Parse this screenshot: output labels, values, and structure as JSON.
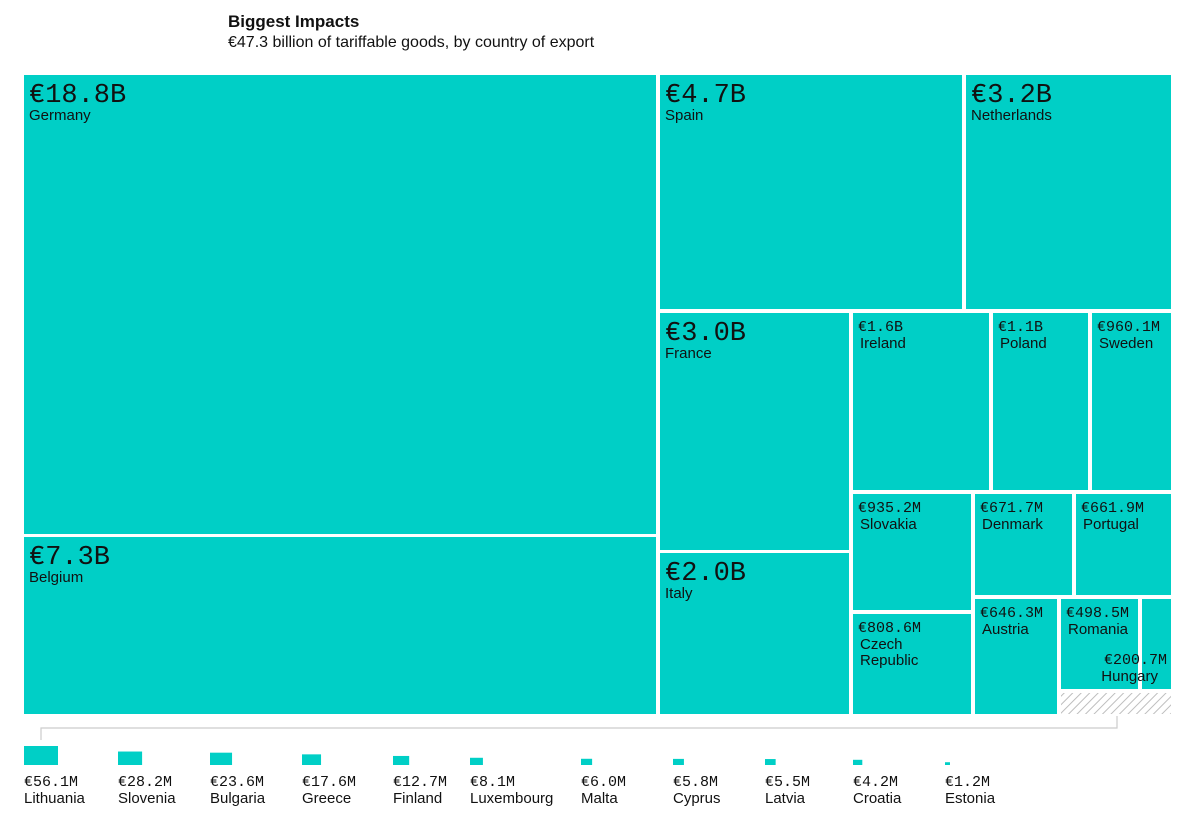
{
  "header": {
    "title": "Biggest Impacts",
    "subtitle": "€47.3 billion of tariffable goods, by country of export"
  },
  "colors": {
    "fill": "#00cfc6",
    "gap": "#ffffff",
    "hatch": "#bdbdbd"
  },
  "chart_data": {
    "type": "treemap",
    "title": "Biggest Impacts",
    "subtitle": "€47.3 billion of tariffable goods, by country of export",
    "unit": "EUR",
    "items": [
      {
        "country": "Germany",
        "label": "€18.8B",
        "value": 18800
      },
      {
        "country": "Belgium",
        "label": "€7.3B",
        "value": 7300
      },
      {
        "country": "Spain",
        "label": "€4.7B",
        "value": 4700
      },
      {
        "country": "Netherlands",
        "label": "€3.2B",
        "value": 3200
      },
      {
        "country": "France",
        "label": "€3.0B",
        "value": 3000
      },
      {
        "country": "Italy",
        "label": "€2.0B",
        "value": 2000
      },
      {
        "country": "Ireland",
        "label": "€1.6B",
        "value": 1600
      },
      {
        "country": "Poland",
        "label": "€1.1B",
        "value": 1100
      },
      {
        "country": "Sweden",
        "label": "€960.1M",
        "value": 960.1
      },
      {
        "country": "Slovakia",
        "label": "€935.2M",
        "value": 935.2
      },
      {
        "country": "Denmark",
        "label": "€671.7M",
        "value": 671.7
      },
      {
        "country": "Portugal",
        "label": "€661.9M",
        "value": 661.9
      },
      {
        "country": "Czech Republic",
        "label": "€808.6M",
        "value": 808.6
      },
      {
        "country": "Austria",
        "label": "€646.3M",
        "value": 646.3
      },
      {
        "country": "Romania",
        "label": "€498.5M",
        "value": 498.5
      },
      {
        "country": "Hungary",
        "label": "€200.7M",
        "value": 200.7
      }
    ],
    "small_items": [
      {
        "country": "Lithuania",
        "label": "€56.1M",
        "value": 56.1
      },
      {
        "country": "Slovenia",
        "label": "€28.2M",
        "value": 28.2
      },
      {
        "country": "Bulgaria",
        "label": "€23.6M",
        "value": 23.6
      },
      {
        "country": "Greece",
        "label": "€17.6M",
        "value": 17.6
      },
      {
        "country": "Finland",
        "label": "€12.7M",
        "value": 12.7
      },
      {
        "country": "Luxembourg",
        "label": "€8.1M",
        "value": 8.1
      },
      {
        "country": "Malta",
        "label": "€6.0M",
        "value": 6.0
      },
      {
        "country": "Cyprus",
        "label": "€5.8M",
        "value": 5.8
      },
      {
        "country": "Latvia",
        "label": "€5.5M",
        "value": 5.5
      },
      {
        "country": "Croatia",
        "label": "€4.2M",
        "value": 4.2
      },
      {
        "country": "Estonia",
        "label": "€1.2M",
        "value": 1.2
      }
    ]
  }
}
